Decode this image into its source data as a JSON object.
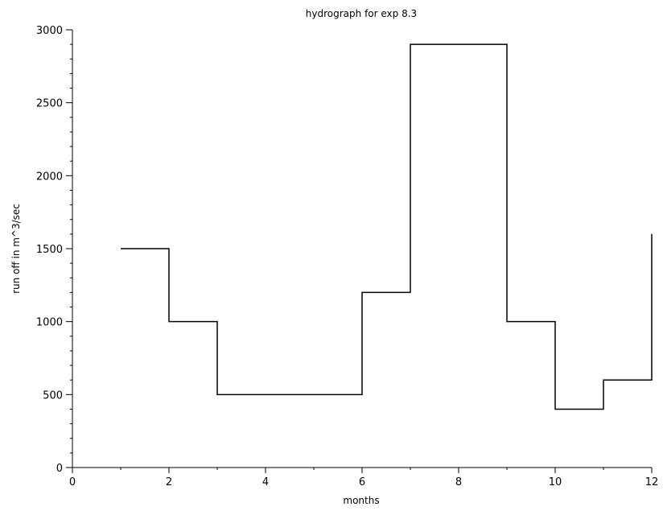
{
  "chart_data": {
    "type": "line",
    "step": "post",
    "title": "hydrograph for exp 8.3",
    "xlabel": "months",
    "ylabel": "run off in m^3/sec",
    "xlim": [
      0,
      12
    ],
    "ylim": [
      0,
      3000
    ],
    "x_ticks": [
      0,
      2,
      4,
      6,
      8,
      10,
      12
    ],
    "x_tick_labels": [
      "0",
      "2",
      "4",
      "6",
      "8",
      "10",
      "12"
    ],
    "x_minor_step": 1,
    "y_ticks": [
      0,
      500,
      1000,
      1500,
      2000,
      2500,
      3000
    ],
    "y_tick_labels": [
      "0",
      "500",
      "1000",
      "1500",
      "2000",
      "2500",
      "3000"
    ],
    "y_minor_step": 100,
    "grid": false,
    "series": [
      {
        "x": [
          1,
          2,
          3,
          4,
          5,
          6,
          7,
          8,
          9,
          10,
          11,
          12
        ],
        "values": [
          1500,
          1000,
          500,
          500,
          500,
          1200,
          2900,
          2900,
          1000,
          400,
          600,
          1600
        ],
        "color": "#000000"
      }
    ]
  }
}
